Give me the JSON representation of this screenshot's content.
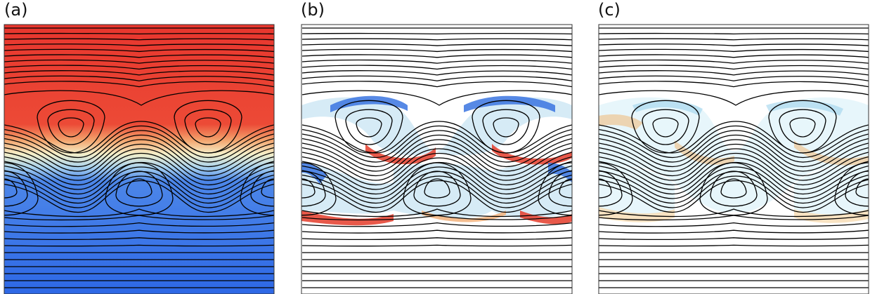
{
  "panels": [
    {
      "label": "(a)",
      "fill": "temperature",
      "colors": {
        "top": "#e8362e",
        "bottom": "#2e68e6",
        "mid": "#f5efc8"
      }
    },
    {
      "label": "(b)",
      "fill": "anomaly",
      "colors": {
        "positive": "#e43c2a",
        "negative": "#3a74e0",
        "light": "#cfe8f5"
      }
    },
    {
      "label": "(c)",
      "fill": "anomaly-weak",
      "colors": {
        "positive": "#f1b26a",
        "negative": "#9fd4ec",
        "light": "#e6f5fb"
      }
    }
  ],
  "streamline_color": "#000000",
  "frame_color": "#333333"
}
